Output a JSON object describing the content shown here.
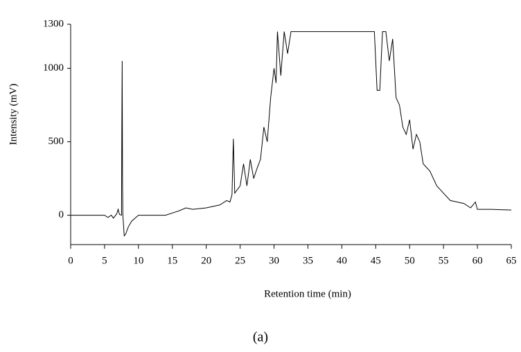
{
  "chart_data": {
    "type": "line",
    "x_label": "Retention time (min)",
    "y_label": "Intensity (mV)",
    "caption": "(a)",
    "x": [
      0,
      5,
      5.5,
      6,
      6.3,
      6.8,
      7,
      7.2,
      7.5,
      7.55,
      7.6,
      7.65,
      7.7,
      7.9,
      8.1,
      8.5,
      9,
      10,
      14,
      16,
      17,
      18,
      20,
      22,
      23,
      23.5,
      23.8,
      24,
      24.2,
      25,
      25.5,
      26,
      26.5,
      27,
      27.5,
      28,
      28.5,
      29,
      29.5,
      30,
      30.3,
      30.5,
      31,
      31.5,
      32,
      32.5,
      44.8,
      45.2,
      45.6,
      46,
      46.5,
      47,
      47.5,
      48,
      48.5,
      49,
      49.5,
      50,
      50.5,
      51,
      51.5,
      52,
      53,
      54,
      55,
      56,
      57,
      58,
      59,
      59.7,
      60,
      62,
      65
    ],
    "values": [
      0,
      0,
      -15,
      0,
      -20,
      10,
      40,
      5,
      0,
      600,
      1050,
      250,
      0,
      -140,
      -130,
      -80,
      -40,
      0,
      0,
      30,
      50,
      40,
      50,
      70,
      100,
      90,
      140,
      520,
      150,
      200,
      350,
      200,
      380,
      250,
      320,
      380,
      600,
      500,
      800,
      1000,
      900,
      1250,
      950,
      1250,
      1100,
      1250,
      1250,
      850,
      850,
      1250,
      1250,
      1050,
      1200,
      800,
      750,
      600,
      550,
      650,
      450,
      550,
      500,
      350,
      300,
      200,
      150,
      100,
      90,
      80,
      50,
      90,
      40,
      40,
      35
    ],
    "color": "#000000",
    "xlim": [
      0,
      65
    ],
    "xticks": [
      0,
      5,
      10,
      15,
      20,
      25,
      30,
      35,
      40,
      45,
      50,
      55,
      60,
      65
    ],
    "ylim": [
      -200,
      1300
    ],
    "yticks": [
      0,
      500,
      1000,
      1300
    ],
    "grid": false
  }
}
